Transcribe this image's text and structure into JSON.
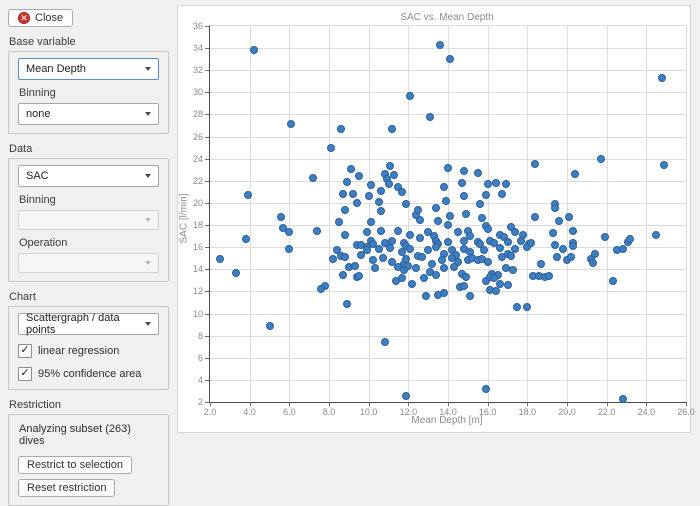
{
  "sidebar": {
    "close_label": "Close",
    "base_variable": {
      "label": "Base variable",
      "value": "Mean Depth",
      "binning_label": "Binning",
      "binning_value": "none"
    },
    "data_section": {
      "label": "Data",
      "value": "SAC",
      "binning_label": "Binning",
      "binning_value": "",
      "operation_label": "Operation",
      "operation_value": ""
    },
    "chart_section": {
      "label": "Chart",
      "type_value": "Scattergraph / data points",
      "checkboxes": [
        {
          "label": "linear regression",
          "checked": true
        },
        {
          "label": "95% confidence area",
          "checked": true
        }
      ]
    },
    "restriction": {
      "label": "Restriction",
      "status": "Analyzing subset (263) dives",
      "restrict_button": "Restrict to selection",
      "reset_button": "Reset restriction"
    }
  },
  "colors": {
    "point_fill": "#3e7fc1",
    "point_edge": "#2b5f9e",
    "focus_border": "#5a8cc4",
    "close_icon": "#cf3434"
  },
  "chart_data": {
    "type": "scatter",
    "title": "SAC vs. Mean Depth",
    "xlabel": "Mean Depth [m]",
    "ylabel": "SAC [l/min]",
    "xlim": [
      2,
      26
    ],
    "ylim": [
      2,
      36
    ],
    "grid": true,
    "x_ticks": [
      2,
      4,
      6,
      8,
      10,
      12,
      14,
      16,
      18,
      20,
      22,
      24,
      26
    ],
    "x_tick_labels": [
      "2.0",
      "4.0",
      "6.0",
      "8.0",
      "10.0",
      "12.0",
      "14.0",
      "16.0",
      "18.0",
      "20.0",
      "22.0",
      "24.0",
      "26.0"
    ],
    "y_ticks": [
      2,
      4,
      6,
      8,
      10,
      12,
      14,
      16,
      18,
      20,
      22,
      24,
      26,
      28,
      30,
      32,
      34,
      36
    ],
    "points": [
      [
        4.2,
        33.8
      ],
      [
        6.1,
        27.1
      ],
      [
        8.6,
        26.7
      ],
      [
        8.1,
        25.0
      ],
      [
        9.1,
        23.1
      ],
      [
        7.2,
        22.3
      ],
      [
        9.5,
        22.4
      ],
      [
        8.9,
        21.9
      ],
      [
        8.7,
        20.8
      ],
      [
        9.2,
        20.8
      ],
      [
        3.9,
        20.7
      ],
      [
        9.4,
        20.0
      ],
      [
        13.6,
        34.3
      ],
      [
        14.1,
        33.0
      ],
      [
        12.1,
        29.7
      ],
      [
        13.1,
        27.8
      ],
      [
        11.2,
        26.7
      ],
      [
        11.1,
        23.3
      ],
      [
        10.8,
        22.6
      ],
      [
        11.3,
        22.5
      ],
      [
        10.9,
        22.2
      ],
      [
        10.1,
        21.6
      ],
      [
        11.0,
        21.7
      ],
      [
        11.5,
        21.4
      ],
      [
        11.7,
        21.0
      ],
      [
        10.6,
        21.1
      ],
      [
        10.0,
        20.6
      ],
      [
        10.5,
        20.1
      ],
      [
        14.0,
        23.2
      ],
      [
        14.8,
        22.9
      ],
      [
        15.5,
        22.7
      ],
      [
        14.7,
        21.8
      ],
      [
        13.8,
        21.4
      ],
      [
        16.0,
        21.7
      ],
      [
        16.4,
        21.8
      ],
      [
        16.9,
        21.7
      ],
      [
        15.9,
        20.7
      ],
      [
        16.7,
        20.8
      ],
      [
        14.8,
        20.6
      ],
      [
        13.9,
        20.2
      ],
      [
        11.9,
        19.9
      ],
      [
        15.6,
        19.9
      ],
      [
        24.8,
        31.3
      ],
      [
        18.4,
        23.5
      ],
      [
        21.7,
        24.0
      ],
      [
        20.4,
        22.6
      ],
      [
        24.9,
        23.4
      ],
      [
        19.4,
        19.9
      ],
      [
        8.8,
        19.4
      ],
      [
        5.6,
        18.7
      ],
      [
        8.5,
        18.3
      ],
      [
        5.7,
        17.7
      ],
      [
        6.0,
        17.4
      ],
      [
        7.4,
        17.5
      ],
      [
        8.8,
        17.1
      ],
      [
        3.8,
        16.7
      ],
      [
        9.4,
        16.2
      ],
      [
        9.6,
        16.2
      ],
      [
        9.9,
        16.0
      ],
      [
        6.0,
        15.8
      ],
      [
        8.4,
        15.7
      ],
      [
        8.6,
        15.2
      ],
      [
        8.2,
        14.9
      ],
      [
        8.8,
        15.1
      ],
      [
        9.6,
        15.3
      ],
      [
        2.5,
        14.9
      ],
      [
        9.0,
        14.2
      ],
      [
        9.3,
        14.3
      ],
      [
        3.3,
        13.7
      ],
      [
        8.7,
        13.5
      ],
      [
        9.4,
        13.3
      ],
      [
        9.5,
        13.4
      ],
      [
        7.8,
        12.5
      ],
      [
        7.6,
        12.2
      ],
      [
        8.9,
        10.9
      ],
      [
        5.0,
        8.9
      ],
      [
        10.6,
        19.3
      ],
      [
        12.4,
        18.9
      ],
      [
        12.5,
        19.4
      ],
      [
        13.4,
        19.5
      ],
      [
        14.1,
        18.8
      ],
      [
        10.1,
        18.3
      ],
      [
        12.6,
        18.5
      ],
      [
        13.5,
        18.4
      ],
      [
        14.0,
        18.0
      ],
      [
        9.9,
        17.4
      ],
      [
        10.6,
        17.5
      ],
      [
        11.5,
        17.5
      ],
      [
        12.1,
        17.1
      ],
      [
        13.0,
        17.4
      ],
      [
        13.3,
        17.0
      ],
      [
        10.1,
        16.6
      ],
      [
        10.2,
        16.3
      ],
      [
        10.8,
        16.4
      ],
      [
        11.2,
        16.6
      ],
      [
        11.8,
        16.4
      ],
      [
        11.9,
        16.1
      ],
      [
        12.6,
        16.8
      ],
      [
        13.4,
        16.6
      ],
      [
        13.5,
        16.3
      ],
      [
        14.0,
        16.5
      ],
      [
        9.9,
        15.7
      ],
      [
        10.5,
        15.8
      ],
      [
        11.1,
        15.9
      ],
      [
        11.7,
        15.6
      ],
      [
        12.1,
        15.8
      ],
      [
        12.5,
        15.2
      ],
      [
        13.0,
        15.7
      ],
      [
        13.4,
        16.0
      ],
      [
        13.8,
        15.4
      ],
      [
        10.2,
        14.8
      ],
      [
        10.7,
        15.0
      ],
      [
        11.2,
        14.7
      ],
      [
        11.8,
        14.5
      ],
      [
        11.9,
        14.9
      ],
      [
        12.7,
        15.1
      ],
      [
        13.2,
        14.5
      ],
      [
        13.7,
        14.8
      ],
      [
        10.3,
        14.1
      ],
      [
        11.5,
        14.2
      ],
      [
        11.8,
        13.9
      ],
      [
        12.0,
        14.3
      ],
      [
        12.4,
        14.1
      ],
      [
        13.1,
        13.8
      ],
      [
        13.4,
        13.5
      ],
      [
        13.8,
        14.1
      ],
      [
        11.4,
        12.9
      ],
      [
        11.7,
        13.2
      ],
      [
        12.2,
        12.7
      ],
      [
        12.8,
        13.2
      ],
      [
        12.9,
        11.6
      ],
      [
        13.5,
        11.7
      ],
      [
        13.8,
        11.9
      ],
      [
        14.9,
        19.0
      ],
      [
        15.7,
        18.6
      ],
      [
        15.9,
        17.9
      ],
      [
        16.0,
        17.6
      ],
      [
        17.2,
        17.8
      ],
      [
        17.4,
        17.4
      ],
      [
        14.5,
        17.4
      ],
      [
        15.0,
        17.5
      ],
      [
        15.1,
        17.0
      ],
      [
        16.6,
        17.1
      ],
      [
        16.8,
        16.9
      ],
      [
        17.8,
        17.1
      ],
      [
        14.8,
        16.6
      ],
      [
        15.5,
        16.5
      ],
      [
        15.6,
        16.3
      ],
      [
        16.1,
        16.6
      ],
      [
        16.3,
        16.4
      ],
      [
        17.0,
        16.5
      ],
      [
        17.7,
        16.6
      ],
      [
        18.1,
        16.3
      ],
      [
        14.2,
        15.7
      ],
      [
        14.4,
        15.3
      ],
      [
        14.8,
        15.8
      ],
      [
        15.1,
        15.6
      ],
      [
        15.8,
        15.7
      ],
      [
        16.6,
        15.9
      ],
      [
        17.0,
        15.4
      ],
      [
        17.4,
        15.8
      ],
      [
        18.0,
        16.0
      ],
      [
        14.2,
        15.0
      ],
      [
        14.5,
        14.7
      ],
      [
        15.0,
        14.8
      ],
      [
        15.2,
        15.0
      ],
      [
        15.5,
        14.8
      ],
      [
        15.7,
        14.9
      ],
      [
        16.0,
        14.7
      ],
      [
        16.7,
        15.1
      ],
      [
        17.2,
        15.2
      ],
      [
        14.3,
        14.2
      ],
      [
        14.7,
        13.6
      ],
      [
        14.9,
        13.3
      ],
      [
        16.2,
        13.6
      ],
      [
        16.5,
        13.5
      ],
      [
        16.9,
        14.1
      ],
      [
        17.3,
        13.9
      ],
      [
        14.6,
        12.4
      ],
      [
        14.8,
        12.5
      ],
      [
        15.9,
        12.9
      ],
      [
        16.1,
        13.3
      ],
      [
        16.3,
        13.2
      ],
      [
        16.6,
        12.7
      ],
      [
        17.0,
        12.6
      ],
      [
        15.1,
        11.6
      ],
      [
        16.1,
        12.1
      ],
      [
        16.4,
        12.0
      ],
      [
        17.5,
        10.6
      ],
      [
        18.0,
        10.6
      ],
      [
        10.8,
        7.4
      ],
      [
        11.9,
        2.5
      ],
      [
        15.9,
        3.2
      ],
      [
        19.4,
        19.5
      ],
      [
        18.4,
        18.7
      ],
      [
        19.6,
        18.4
      ],
      [
        20.1,
        18.7
      ],
      [
        19.3,
        17.3
      ],
      [
        20.3,
        17.5
      ],
      [
        18.2,
        16.4
      ],
      [
        19.4,
        16.2
      ],
      [
        20.3,
        16.4
      ],
      [
        20.3,
        16.1
      ],
      [
        19.8,
        15.8
      ],
      [
        19.5,
        15.1
      ],
      [
        20.0,
        14.8
      ],
      [
        20.2,
        15.1
      ],
      [
        18.7,
        14.5
      ],
      [
        21.2,
        14.9
      ],
      [
        21.3,
        14.6
      ],
      [
        21.4,
        15.4
      ],
      [
        21.9,
        16.9
      ],
      [
        22.5,
        15.7
      ],
      [
        22.8,
        15.8
      ],
      [
        23.1,
        16.5
      ],
      [
        23.2,
        16.7
      ],
      [
        24.5,
        17.1
      ],
      [
        18.3,
        13.4
      ],
      [
        18.6,
        13.4
      ],
      [
        18.9,
        13.3
      ],
      [
        19.1,
        13.4
      ],
      [
        22.3,
        12.9
      ],
      [
        22.8,
        2.3
      ]
    ]
  }
}
